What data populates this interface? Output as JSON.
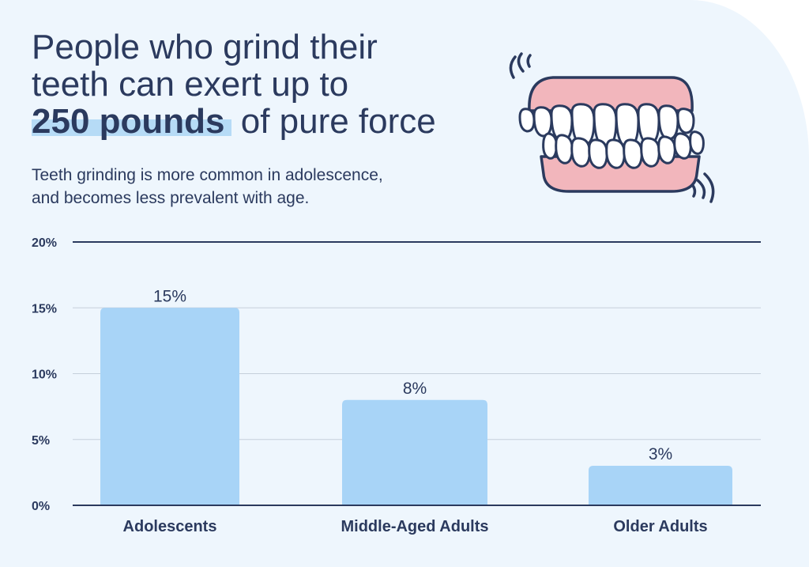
{
  "headline": {
    "line1": "People who grind their",
    "line2": "teeth can exert up to",
    "highlight": "250 pounds",
    "line3_rest": " of pure force"
  },
  "subtitle": {
    "line1": "Teeth grinding is more common in adolescence,",
    "line2": "and becomes less prevalent with age."
  },
  "illustration": {
    "icon": "teeth-grinding-icon"
  },
  "colors": {
    "background": "#eef6fd",
    "bar": "#a8d4f7",
    "text": "#2b3a5e",
    "highlight": "#b6dbf6",
    "gums": "#f2b6bc"
  },
  "chart_data": {
    "type": "bar",
    "categories": [
      "Adolescents",
      "Middle-Aged Adults",
      "Older Adults"
    ],
    "values": [
      15,
      8,
      3
    ],
    "value_labels": [
      "15%",
      "8%",
      "3%"
    ],
    "ylim": [
      0,
      20
    ],
    "yticks": [
      0,
      5,
      10,
      15,
      20
    ],
    "ytick_labels": [
      "0%",
      "5%",
      "10%",
      "15%",
      "20%"
    ],
    "grid": true,
    "legend": "none"
  }
}
